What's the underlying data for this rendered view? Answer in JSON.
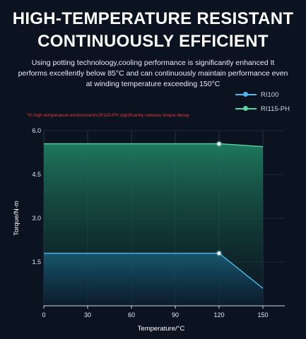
{
  "header": {
    "title_line1": "HIGH-TEMPERATURE RESISTANT",
    "title_line2": "CONTINUOUSLY EFFICIENT",
    "description": "Using potting technoloogy,cooling performance is significantly enhanced It performs excellently below 85°C and can continuously maintain performance even at winding temperature exceeding 150°C",
    "note": "*In high-temperature environments,RI115-PH significantly reduces torque decay"
  },
  "colors": {
    "background": "#0b1220",
    "series_blue": "#4fb8ec",
    "series_green": "#58d6a0",
    "note_red": "#e43b3b"
  },
  "chart_data": {
    "type": "area",
    "title": "",
    "xlabel": "Temperature/°C",
    "ylabel": "Torque/N·m",
    "x_ticks": [
      0,
      30,
      60,
      90,
      120,
      150
    ],
    "y_ticks": [
      1.5,
      3.0,
      4.5,
      6.0
    ],
    "y_tick_labels": [
      "1.5",
      "3.0",
      "4.5",
      "6.0"
    ],
    "xlim": [
      0,
      165
    ],
    "ylim": [
      0,
      6.0
    ],
    "grid": true,
    "legend_position": "top-right",
    "series": [
      {
        "name": "RI100",
        "color": "#4fb8ec",
        "x": [
          0,
          120,
          150
        ],
        "y": [
          1.8,
          1.8,
          0.6
        ],
        "marker_at": [
          120,
          1.8
        ]
      },
      {
        "name": "RI115-PH",
        "color": "#58d6a0",
        "x": [
          0,
          120,
          130,
          150
        ],
        "y": [
          5.55,
          5.55,
          5.52,
          5.45
        ],
        "marker_at": [
          120,
          5.55
        ]
      }
    ]
  }
}
